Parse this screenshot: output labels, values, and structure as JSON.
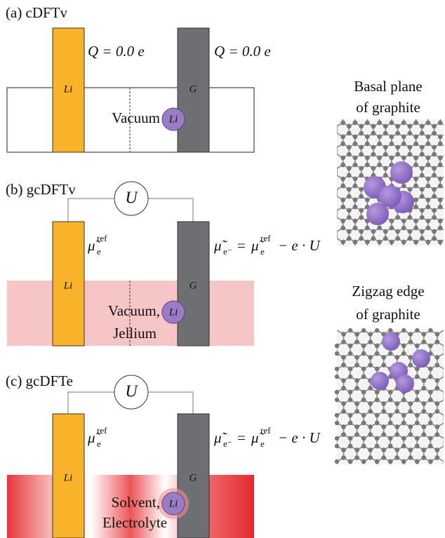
{
  "panels": [
    {
      "label": "(a) cDFTv",
      "left_electrode": "Li",
      "right_electrode": "G",
      "left_charge": "Q = 0.0 e",
      "right_charge": "Q = 0.0 e",
      "medium": [
        "Vacuum"
      ],
      "ion": "Li"
    },
    {
      "label": "(b) gcDFTv",
      "potential": "U",
      "left_electrode": "Li",
      "right_electrode": "G",
      "left_mu": {
        "base": "μ̃",
        "sub": "e",
        "sup": "ref"
      },
      "right_mu": {
        "base": "μ̃",
        "sub": "e⁻",
        "eq": "=",
        "base2": "μ̃",
        "sub2": "e",
        "sup2": "ref",
        "tail": "− e · U"
      },
      "medium": [
        "Vacuum,",
        "Jellium"
      ],
      "ion": "Li"
    },
    {
      "label": "(c) gcDFTe",
      "potential": "U",
      "left_electrode": "Li",
      "right_electrode": "G",
      "left_mu": {
        "base": "μ̃",
        "sub": "e",
        "sup": "ref"
      },
      "right_mu": {
        "base": "μ̃",
        "sub": "e⁻",
        "eq": "=",
        "base2": "μ̃",
        "sub2": "e",
        "sup2": "ref",
        "tail": "− e · U"
      },
      "medium": [
        "Solvent,",
        "Electrolyte"
      ],
      "ion": "Li"
    }
  ],
  "structures": [
    {
      "caption": [
        "Basal plane",
        "of graphite"
      ]
    },
    {
      "caption": [
        "Zigzag edge",
        "of graphite"
      ]
    }
  ]
}
